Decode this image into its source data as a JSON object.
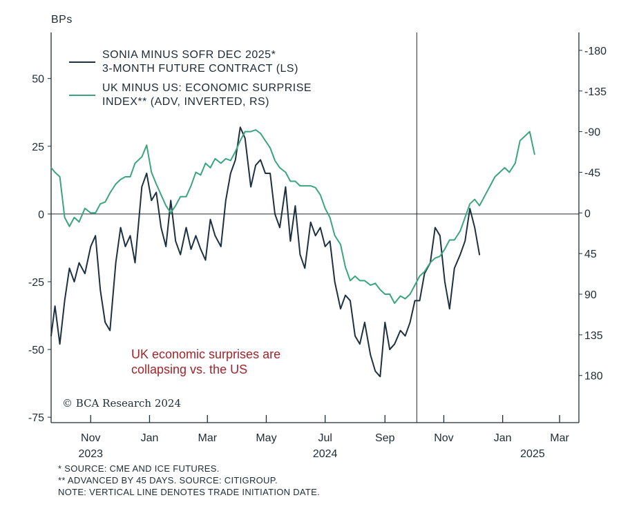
{
  "chart_data": {
    "type": "line",
    "ylabel_left": "BPs",
    "left_axis": {
      "ylim": [
        -77,
        67
      ],
      "ticks": [
        50,
        25,
        0,
        -25,
        -50,
        -75
      ],
      "tick_labels": [
        "50",
        "25",
        "0",
        "-25",
        "-50",
        "-75"
      ]
    },
    "right_axis": {
      "inverted": true,
      "ylim": [
        -199.8,
        232.2
      ],
      "ticks": [
        -180,
        -135,
        -90,
        -45,
        0,
        45,
        90,
        135,
        180
      ],
      "tick_labels": [
        "-180",
        "-135",
        "-90",
        "-45",
        "0",
        "45",
        "90",
        "135",
        "180"
      ]
    },
    "x_axis": {
      "range": [
        "2023-09-21",
        "2025-03-21"
      ],
      "ticks": [
        "2023-11-01",
        "2024-01-01",
        "2024-03-01",
        "2024-05-01",
        "2024-07-01",
        "2024-09-01",
        "2024-11-01",
        "2025-01-01",
        "2025-03-01"
      ],
      "month_labels": [
        "Nov",
        "Jan",
        "Mar",
        "May",
        "Jul",
        "Sep",
        "Nov",
        "Jan",
        "Mar"
      ],
      "year_labels": [
        {
          "text": "2023",
          "at": "2023-11-01"
        },
        {
          "text": "2024",
          "at": "2024-07-01"
        },
        {
          "text": "2025",
          "at": "2025-02-01"
        }
      ]
    },
    "vertical_line": "2024-10-04",
    "series": [
      {
        "name": "SONIA MINUS SOFR DEC 2025* 3-MONTH FUTURE CONTRACT (LS)",
        "axis": "left",
        "color": "#1c3040",
        "x": [
          "2023-09-21",
          "2023-09-25",
          "2023-09-30",
          "2023-10-05",
          "2023-10-10",
          "2023-10-15",
          "2023-10-20",
          "2023-10-26",
          "2023-11-01",
          "2023-11-06",
          "2023-11-11",
          "2023-11-16",
          "2023-11-21",
          "2023-11-27",
          "2023-12-02",
          "2023-12-07",
          "2023-12-12",
          "2023-12-17",
          "2023-12-24",
          "2023-12-29",
          "2024-01-03",
          "2024-01-08",
          "2024-01-13",
          "2024-01-18",
          "2024-01-23",
          "2024-01-28",
          "2024-02-02",
          "2024-02-08",
          "2024-02-13",
          "2024-02-18",
          "2024-02-23",
          "2024-02-28",
          "2024-03-04",
          "2024-03-09",
          "2024-03-15",
          "2024-03-20",
          "2024-03-25",
          "2024-03-30",
          "2024-04-04",
          "2024-04-09",
          "2024-04-15",
          "2024-04-20",
          "2024-04-25",
          "2024-04-30",
          "2024-05-05",
          "2024-05-10",
          "2024-05-15",
          "2024-05-21",
          "2024-05-26",
          "2024-05-31",
          "2024-06-05",
          "2024-06-10",
          "2024-06-16",
          "2024-06-21",
          "2024-06-26",
          "2024-07-01",
          "2024-07-06",
          "2024-07-11",
          "2024-07-17",
          "2024-07-22",
          "2024-07-27",
          "2024-08-01",
          "2024-08-06",
          "2024-08-11",
          "2024-08-17",
          "2024-08-22",
          "2024-08-27",
          "2024-09-01",
          "2024-09-06",
          "2024-09-11",
          "2024-09-17",
          "2024-09-22",
          "2024-09-27",
          "2024-10-02",
          "2024-10-07",
          "2024-10-12",
          "2024-10-18",
          "2024-10-23",
          "2024-10-28",
          "2024-11-02",
          "2024-11-07",
          "2024-11-12",
          "2024-11-18",
          "2024-11-23",
          "2024-11-28",
          "2024-12-03",
          "2024-12-08"
        ],
        "y": [
          -45,
          -34,
          -48,
          -32,
          -20,
          -25,
          -18,
          -22,
          -12,
          -8,
          -28,
          -40,
          -43,
          -18,
          -5,
          -12,
          -8,
          -18,
          10,
          15,
          5,
          8,
          -5,
          -12,
          5,
          -10,
          -15,
          -5,
          -13,
          -8,
          -13,
          -17,
          -2,
          -8,
          -12,
          5,
          15,
          20,
          32,
          28,
          10,
          18,
          20,
          15,
          15,
          0,
          -5,
          10,
          -10,
          3,
          -15,
          -20,
          -3,
          -8,
          -5,
          -12,
          -10,
          -25,
          -35,
          -30,
          -32,
          -45,
          -48,
          -40,
          -52,
          -58,
          -60,
          -40,
          -50,
          -48,
          -43,
          -45,
          -40,
          -32,
          -32,
          -22,
          -18,
          -5,
          -8,
          -25,
          -35,
          -20,
          -15,
          -10,
          2,
          -5,
          -15
        ]
      },
      {
        "name": "UK MINUS US: ECONOMIC SURPRISE INDEX** (ADV, INVERTED, RS)",
        "axis": "right",
        "color": "#3aa57d",
        "x": [
          "2023-09-21",
          "2023-09-25",
          "2023-09-30",
          "2023-10-05",
          "2023-10-10",
          "2023-10-15",
          "2023-10-20",
          "2023-10-26",
          "2023-11-01",
          "2023-11-06",
          "2023-11-11",
          "2023-11-16",
          "2023-11-21",
          "2023-11-27",
          "2023-12-02",
          "2023-12-07",
          "2023-12-12",
          "2023-12-17",
          "2023-12-24",
          "2023-12-29",
          "2024-01-03",
          "2024-01-08",
          "2024-01-13",
          "2024-01-18",
          "2024-01-23",
          "2024-01-28",
          "2024-02-02",
          "2024-02-08",
          "2024-02-13",
          "2024-02-18",
          "2024-02-23",
          "2024-02-28",
          "2024-03-04",
          "2024-03-09",
          "2024-03-15",
          "2024-03-20",
          "2024-03-25",
          "2024-03-30",
          "2024-04-04",
          "2024-04-09",
          "2024-04-15",
          "2024-04-20",
          "2024-04-25",
          "2024-04-30",
          "2024-05-05",
          "2024-05-10",
          "2024-05-15",
          "2024-05-21",
          "2024-05-26",
          "2024-05-31",
          "2024-06-05",
          "2024-06-10",
          "2024-06-16",
          "2024-06-21",
          "2024-06-26",
          "2024-07-01",
          "2024-07-06",
          "2024-07-11",
          "2024-07-17",
          "2024-07-22",
          "2024-07-27",
          "2024-08-01",
          "2024-08-06",
          "2024-08-11",
          "2024-08-17",
          "2024-08-22",
          "2024-08-27",
          "2024-09-01",
          "2024-09-06",
          "2024-09-11",
          "2024-09-17",
          "2024-09-22",
          "2024-09-27",
          "2024-10-02",
          "2024-10-07",
          "2024-10-12",
          "2024-10-18",
          "2024-10-23",
          "2024-10-28",
          "2024-11-02",
          "2024-11-07",
          "2024-11-12",
          "2024-11-18",
          "2024-11-23",
          "2024-11-28",
          "2024-12-03",
          "2024-12-08",
          "2024-12-14",
          "2024-12-19",
          "2024-12-24",
          "2024-12-29",
          "2025-01-03",
          "2025-01-08",
          "2025-01-14",
          "2025-01-19",
          "2025-01-24",
          "2025-01-29",
          "2025-02-03"
        ],
        "y": [
          -50,
          -45,
          -40,
          5,
          15,
          5,
          10,
          -5,
          0,
          0,
          -10,
          -12,
          -22,
          -32,
          -37,
          -40,
          -40,
          -55,
          -62,
          -75,
          -45,
          -32,
          -20,
          -8,
          0,
          -8,
          -18,
          -18,
          -30,
          -45,
          -42,
          -55,
          -50,
          -60,
          -55,
          -60,
          -58,
          -68,
          -80,
          -90,
          -90,
          -92,
          -88,
          -80,
          -72,
          -58,
          -50,
          -45,
          -35,
          -35,
          -30,
          -30,
          -30,
          -28,
          -20,
          -5,
          5,
          25,
          35,
          60,
          75,
          70,
          75,
          75,
          80,
          78,
          85,
          90,
          90,
          100,
          92,
          95,
          90,
          80,
          70,
          65,
          55,
          50,
          48,
          40,
          30,
          30,
          20,
          5,
          -10,
          -15,
          -8,
          -20,
          -30,
          -40,
          -45,
          -50,
          -45,
          -55,
          -80,
          -85,
          -90,
          -65
        ]
      }
    ]
  },
  "text": {
    "ylabel": "BPs",
    "legend": [
      {
        "line1": "SONIA MINUS SOFR DEC 2025*",
        "line2": "3-MONTH FUTURE CONTRACT (LS)"
      },
      {
        "line1": "UK MINUS US: ECONOMIC SURPRISE",
        "line2": "INDEX** (ADV, INVERTED, RS)"
      }
    ],
    "annotation_line1": "UK economic surprises are",
    "annotation_line2": "collapsing vs. the US",
    "copyright": "© BCA Research 2024",
    "notes": [
      "*  SOURCE: CME AND ICE FUTURES.",
      "** ADVANCED BY 45 DAYS. SOURCE: CITIGROUP.",
      "NOTE: VERTICAL LINE DENOTES TRADE INITIATION DATE."
    ]
  },
  "colors": {
    "axis": "#1d2b35",
    "annotation": "#a3242a"
  }
}
